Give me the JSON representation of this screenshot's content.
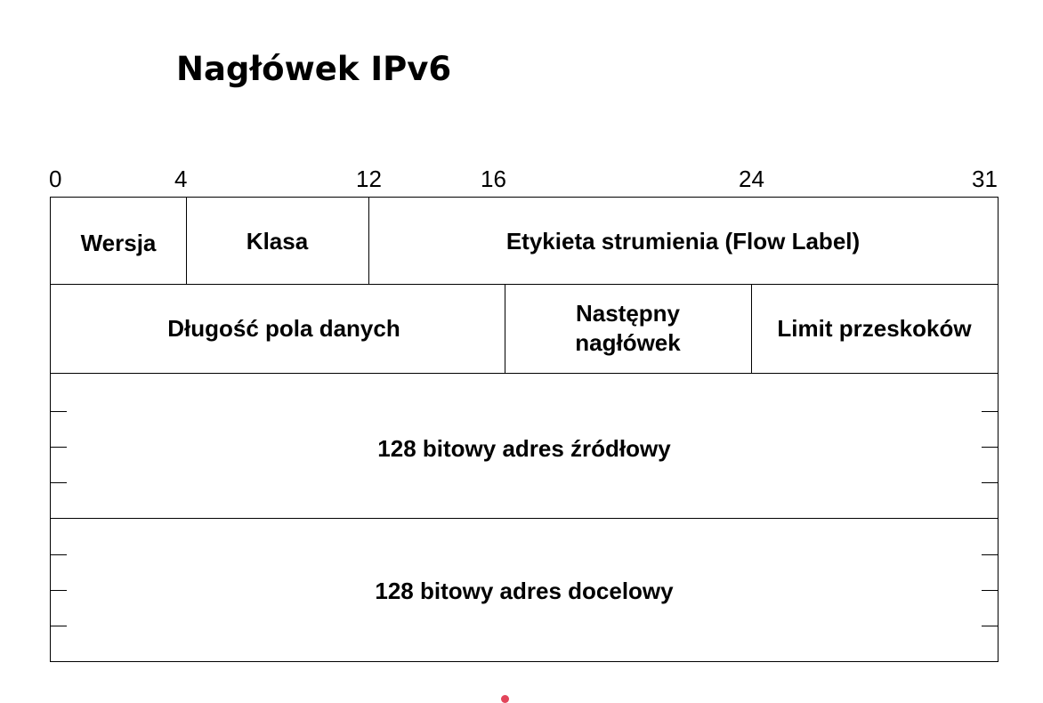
{
  "title": "Nagłówek IPv6",
  "bit_ticks": [
    "0",
    "4",
    "12",
    "16",
    "24",
    "31"
  ],
  "row1": {
    "version": "Wersja",
    "traffic_class": "Klasa",
    "flow_label": "Etykieta strumienia (Flow Label)"
  },
  "row2": {
    "payload_length": "Długość pola danych",
    "next_header": "Następny\nnagłówek",
    "hop_limit": "Limit przeskoków"
  },
  "source_address": "128 bitowy adres źródłowy",
  "destination_address": "128 bitowy adres docelowy",
  "marker_color": "#e2445a"
}
